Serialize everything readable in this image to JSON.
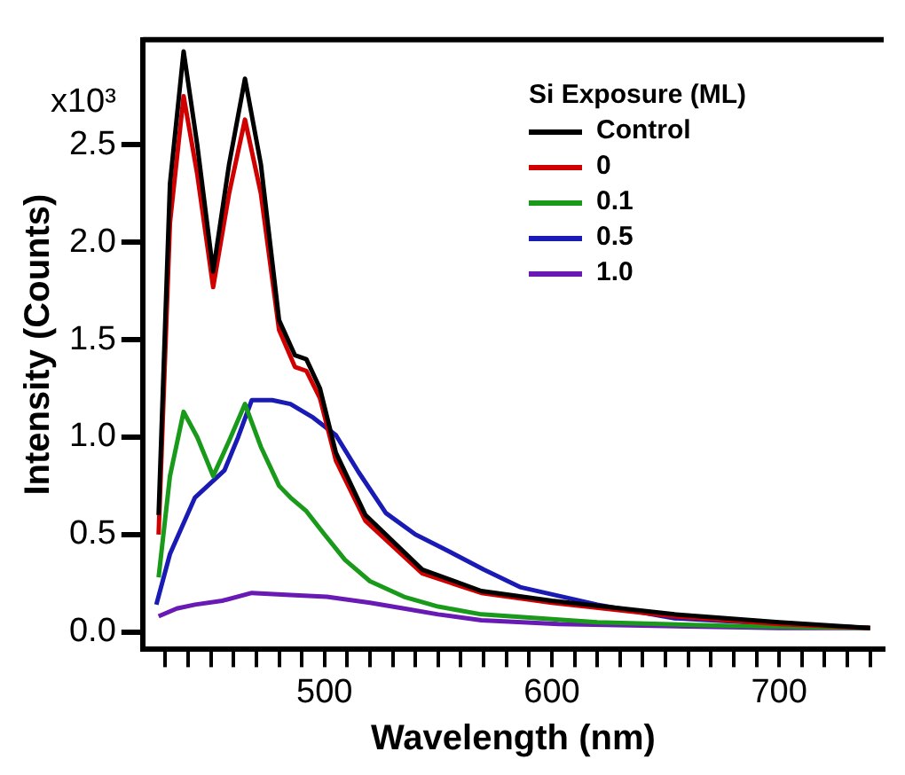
{
  "chart_data": {
    "type": "line",
    "xlabel": "Wavelength (nm)",
    "ylabel": "Intensity (Counts)",
    "legend_title": "Si Exposure (ML)",
    "legend": "top right",
    "grid": false,
    "marker": "none",
    "line_style": "solid",
    "annotations": [
      "x10³"
    ],
    "xlim": [
      420,
      746
    ],
    "ylim": [
      -0.09,
      3.04
    ],
    "xticks": [
      {
        "value": 430,
        "label": null
      },
      {
        "value": 440,
        "label": null
      },
      {
        "value": 450,
        "label": null
      },
      {
        "value": 460,
        "label": null
      },
      {
        "value": 470,
        "label": null
      },
      {
        "value": 480,
        "label": null
      },
      {
        "value": 490,
        "label": null
      },
      500,
      {
        "value": 510,
        "label": null
      },
      {
        "value": 520,
        "label": null
      },
      {
        "value": 530,
        "label": null
      },
      {
        "value": 540,
        "label": null
      },
      {
        "value": 550,
        "label": null
      },
      {
        "value": 560,
        "label": null
      },
      {
        "value": 570,
        "label": null
      },
      {
        "value": 580,
        "label": null
      },
      {
        "value": 590,
        "label": null
      },
      600,
      {
        "value": 610,
        "label": null
      },
      {
        "value": 620,
        "label": null
      },
      {
        "value": 630,
        "label": null
      },
      {
        "value": 640,
        "label": null
      },
      {
        "value": 650,
        "label": null
      },
      {
        "value": 660,
        "label": null
      },
      {
        "value": 670,
        "label": null
      },
      {
        "value": 680,
        "label": null
      },
      {
        "value": 690,
        "label": null
      },
      700,
      {
        "value": 710,
        "label": null
      },
      {
        "value": 720,
        "label": null
      },
      {
        "value": 730,
        "label": null
      },
      {
        "value": 740,
        "label": null
      }
    ],
    "yticks": [
      {
        "value": 0,
        "label": "0.0"
      },
      0.5,
      {
        "value": 1,
        "label": "1.0"
      },
      1.5,
      {
        "value": 2,
        "label": "2.0"
      },
      2.5
    ],
    "series": [
      {
        "name": "Control",
        "color": "#000000",
        "x": [
          427,
          432,
          438,
          444,
          451,
          458,
          465,
          472,
          480,
          487,
          492,
          498,
          505,
          518,
          543,
          569,
          600,
          654,
          700,
          740
        ],
        "values": [
          0.6,
          2.3,
          2.98,
          2.5,
          1.85,
          2.4,
          2.84,
          2.4,
          1.6,
          1.42,
          1.4,
          1.25,
          0.92,
          0.6,
          0.32,
          0.21,
          0.16,
          0.09,
          0.05,
          0.02
        ]
      },
      {
        "name": "0",
        "color": "#d00000",
        "x": [
          427,
          432,
          438,
          444,
          451,
          458,
          465,
          472,
          480,
          487,
          492,
          498,
          505,
          518,
          543,
          569,
          600,
          654,
          700,
          740
        ],
        "values": [
          0.5,
          2.1,
          2.75,
          2.35,
          1.77,
          2.25,
          2.63,
          2.25,
          1.55,
          1.36,
          1.34,
          1.2,
          0.88,
          0.57,
          0.3,
          0.2,
          0.15,
          0.08,
          0.04,
          0.02
        ]
      },
      {
        "name": "0.1",
        "color": "#1a9a1a",
        "x": [
          427,
          432,
          438,
          444,
          451,
          458,
          465,
          472,
          480,
          485,
          492,
          500,
          509,
          520,
          535,
          550,
          569,
          620,
          680,
          740
        ],
        "values": [
          0.28,
          0.8,
          1.13,
          1.0,
          0.8,
          0.98,
          1.17,
          0.95,
          0.75,
          0.69,
          0.62,
          0.5,
          0.37,
          0.26,
          0.18,
          0.13,
          0.09,
          0.05,
          0.03,
          0.02
        ]
      },
      {
        "name": "0.5",
        "color": "#1a1ab4",
        "x": [
          426,
          432,
          443,
          456,
          462,
          468,
          477,
          485,
          495,
          505,
          515,
          527,
          540,
          552,
          570,
          586,
          620,
          654,
          700,
          740
        ],
        "values": [
          0.14,
          0.4,
          0.69,
          0.83,
          1.0,
          1.19,
          1.19,
          1.17,
          1.1,
          1.01,
          0.82,
          0.61,
          0.5,
          0.43,
          0.32,
          0.23,
          0.14,
          0.07,
          0.04,
          0.02
        ]
      },
      {
        "name": "1.0",
        "color": "#6a1ab4",
        "x": [
          427,
          435,
          443,
          455,
          468,
          485,
          501,
          520,
          535,
          550,
          569,
          603,
          650,
          700,
          740
        ],
        "values": [
          0.08,
          0.12,
          0.14,
          0.16,
          0.2,
          0.19,
          0.18,
          0.15,
          0.12,
          0.09,
          0.06,
          0.04,
          0.03,
          0.02,
          0.02
        ]
      }
    ]
  }
}
